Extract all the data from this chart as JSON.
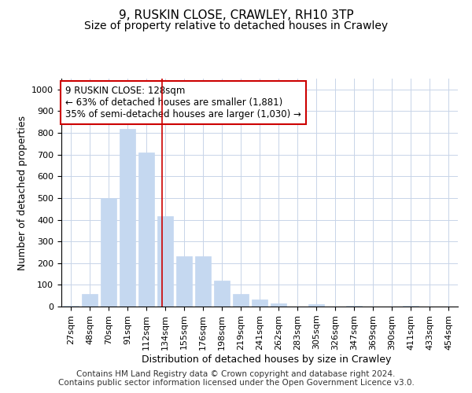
{
  "title": "9, RUSKIN CLOSE, CRAWLEY, RH10 3TP",
  "subtitle": "Size of property relative to detached houses in Crawley",
  "xlabel": "Distribution of detached houses by size in Crawley",
  "ylabel": "Number of detached properties",
  "categories": [
    "27sqm",
    "48sqm",
    "70sqm",
    "91sqm",
    "112sqm",
    "134sqm",
    "155sqm",
    "176sqm",
    "198sqm",
    "219sqm",
    "241sqm",
    "262sqm",
    "283sqm",
    "305sqm",
    "326sqm",
    "347sqm",
    "369sqm",
    "390sqm",
    "411sqm",
    "433sqm",
    "454sqm"
  ],
  "values": [
    5,
    57,
    500,
    820,
    710,
    415,
    230,
    230,
    118,
    57,
    33,
    15,
    0,
    12,
    0,
    5,
    0,
    0,
    5,
    0,
    0
  ],
  "bar_color": "#c5d8f0",
  "bar_edge_color": "#c5d8f0",
  "bar_width": 0.85,
  "ylim": [
    0,
    1050
  ],
  "yticks": [
    0,
    100,
    200,
    300,
    400,
    500,
    600,
    700,
    800,
    900,
    1000
  ],
  "vline_x": 4.85,
  "vline_color": "#cc0000",
  "annotation_text": "9 RUSKIN CLOSE: 128sqm\n← 63% of detached houses are smaller (1,881)\n35% of semi-detached houses are larger (1,030) →",
  "annotation_box_facecolor": "#ffffff",
  "annotation_box_edgecolor": "#cc0000",
  "footer_text": "Contains HM Land Registry data © Crown copyright and database right 2024.\nContains public sector information licensed under the Open Government Licence v3.0.",
  "bg_color": "#ffffff",
  "plot_bg_color": "#ffffff",
  "grid_color": "#c8d4e8",
  "title_fontsize": 11,
  "subtitle_fontsize": 10,
  "axis_label_fontsize": 9,
  "tick_fontsize": 8,
  "annotation_fontsize": 8.5,
  "footer_fontsize": 7.5
}
